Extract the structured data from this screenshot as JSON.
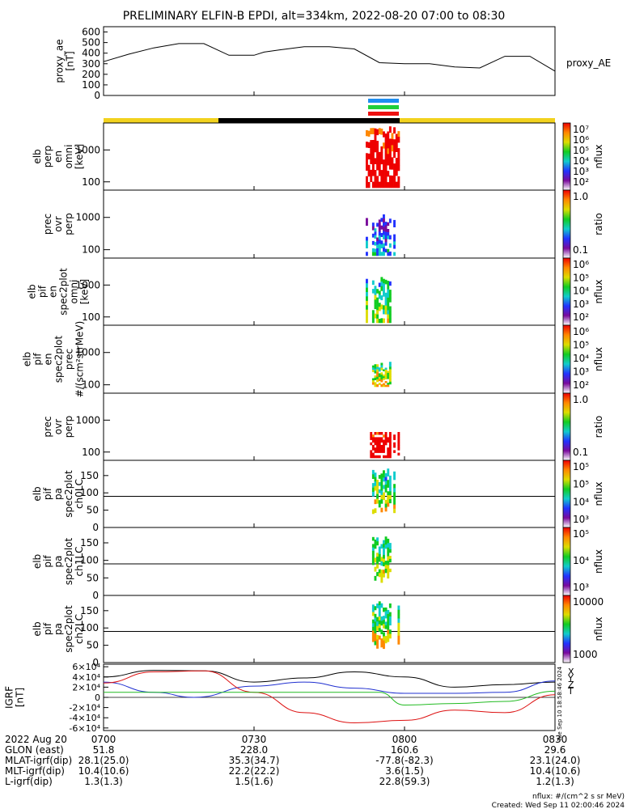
{
  "title": "PRELIMINARY ELFIN-B EPDI, alt=334km, 2022-08-20 07:00 to 08:30",
  "colors": {
    "yellow_bar": "#f2d21e",
    "black_bar": "#000000",
    "blue_strip": "#1f8ef0",
    "green_strip": "#1fcf3a",
    "red_strip": "#ee1111",
    "bx": "#000000",
    "by": "#2030d0",
    "bz": "#dd1111",
    "bt": "#22bb22"
  },
  "colorbar_stops": [
    "#ffffff",
    "#7a0a9c",
    "#2233ff",
    "#11cccc",
    "#11cc22",
    "#dddd00",
    "#ff8800",
    "#ee0000"
  ],
  "chart_data": {
    "type": "heatmap",
    "xlim": [
      "07:00",
      "08:30"
    ],
    "x_ticks": [
      "0700",
      "0730",
      "0800",
      "0830"
    ],
    "panels": [
      {
        "id": "proxy-ae",
        "ylabel": [
          "proxy_ae",
          "[nT]"
        ],
        "right_label": "proxy_AE",
        "ylim": [
          0,
          650
        ],
        "yticks": [
          "0",
          "100",
          "200",
          "300",
          "400",
          "500",
          "600"
        ],
        "line": {
          "x_min": [
            0,
            5,
            10,
            15,
            20,
            25,
            30,
            32,
            35,
            40,
            45,
            50,
            55,
            60,
            65,
            70,
            75,
            80,
            85,
            90
          ],
          "y": [
            320,
            390,
            450,
            490,
            490,
            380,
            380,
            410,
            430,
            460,
            460,
            440,
            310,
            300,
            300,
            270,
            260,
            370,
            370,
            230
          ]
        }
      },
      {
        "id": "perp-omni",
        "ylabel": [
          "elb",
          "perp",
          "en",
          "omni",
          "[keV]"
        ],
        "yticks": [
          "100",
          "1000"
        ],
        "colorbar": {
          "label": "nflux",
          "ticks": [
            "10⁷",
            "10⁶",
            "10⁵",
            "10⁴",
            "10³",
            "10²"
          ]
        }
      },
      {
        "id": "prec-ovr-perp-1",
        "ylabel": [
          "prec",
          "ovr",
          "perp"
        ],
        "yticks": [
          "100",
          "1000"
        ],
        "colorbar": {
          "label": "ratio",
          "ticks": [
            "1.0",
            "0.1"
          ]
        }
      },
      {
        "id": "para-omni",
        "ylabel": [
          "elb",
          "pif",
          "en",
          "spec2plot",
          "omni",
          "[keV]"
        ],
        "yticks": [
          "100",
          "1000"
        ],
        "colorbar": {
          "label": "nflux",
          "ticks": [
            "10⁶",
            "10⁵",
            "10⁴",
            "10³",
            "10²"
          ]
        }
      },
      {
        "id": "para-prec",
        "ylabel": [
          "elb",
          "pif",
          "en",
          "spec2plot",
          "prec",
          "#/(scm²strMeV)"
        ],
        "yticks": [
          "100",
          "1000"
        ],
        "colorbar": {
          "label": "nflux",
          "ticks": [
            "10⁶",
            "10⁵",
            "10⁴",
            "10³",
            "10²"
          ]
        }
      },
      {
        "id": "prec-ovr-perp-2",
        "ylabel": [
          "prec",
          "ovr",
          "perp"
        ],
        "yticks": [
          "100",
          "1000"
        ],
        "colorbar": {
          "label": "ratio",
          "ticks": [
            "1.0",
            "0.1"
          ]
        }
      },
      {
        "id": "pa-ch0",
        "ylabel": [
          "elb",
          "pif",
          "pa",
          "spec2plot",
          "ch0LC"
        ],
        "yticks": [
          "0",
          "50",
          "100",
          "150"
        ],
        "colorbar": {
          "label": "nflux",
          "ticks": [
            "10⁵",
            "10⁵",
            "10⁴",
            "10³"
          ]
        }
      },
      {
        "id": "pa-ch1",
        "ylabel": [
          "elb",
          "pif",
          "pa",
          "spec2plot",
          "ch1LC"
        ],
        "yticks": [
          "0",
          "50",
          "100",
          "150"
        ],
        "colorbar": {
          "label": "nflux",
          "ticks": [
            "10⁵",
            "10⁴",
            "10³"
          ]
        }
      },
      {
        "id": "pa-ch2",
        "ylabel": [
          "elb",
          "pif",
          "pa",
          "spec2plot",
          "ch2LC"
        ],
        "yticks": [
          "0",
          "50",
          "100",
          "150"
        ],
        "colorbar": {
          "label": "nflux",
          "ticks": [
            "10000",
            "1000"
          ]
        }
      },
      {
        "id": "igrf",
        "ylabel": [
          "IGRF",
          "[nT]"
        ],
        "yticks": [
          "-6×10⁴",
          "-4×10⁴",
          "-2×10⁴",
          "0",
          "2×10⁴",
          "4×10⁴",
          "6×10⁴"
        ],
        "ylim": [
          -65000,
          65000
        ],
        "legend": [
          "X",
          "Y",
          "Z",
          "T"
        ],
        "series": [
          {
            "x_min": [
              0,
              10,
              20,
              30,
              40,
              50,
              60,
              70,
              80,
              90
            ],
            "y": [
              40000,
              53000,
              52000,
              30000,
              38000,
              50000,
              40000,
              20000,
              25000,
              30000
            ]
          },
          {
            "x_min": [
              0,
              10,
              18,
              30,
              40,
              50,
              60,
              70,
              80,
              90
            ],
            "y": [
              30000,
              10000,
              0,
              22000,
              30000,
              18000,
              8000,
              8000,
              10000,
              32000
            ]
          },
          {
            "x_min": [
              0,
              10,
              20,
              30,
              40,
              50,
              60,
              70,
              80,
              90
            ],
            "y": [
              28000,
              50000,
              52000,
              10000,
              -30000,
              -50000,
              -45000,
              -25000,
              -30000,
              5000
            ]
          },
          {
            "x_min": [
              0,
              30,
              55,
              60,
              70,
              80,
              90
            ],
            "y": [
              10000,
              10000,
              10000,
              -15000,
              -12000,
              -8000,
              12000
            ]
          }
        ]
      }
    ],
    "ephemeris": {
      "rows": [
        {
          "label": "2022 Aug 20",
          "values": [
            "0700",
            "0730",
            "0800",
            "0830"
          ]
        },
        {
          "label": "GLON (east)",
          "values": [
            "51.8",
            "228.0",
            "160.6",
            "29.6"
          ]
        },
        {
          "label": "MLAT-igrf(dip)",
          "values": [
            "28.1(25.0)",
            "35.3(34.7)",
            "-77.8(-82.3)",
            "23.1(24.0)"
          ]
        },
        {
          "label": "MLT-igrf(dip)",
          "values": [
            "10.4(10.6)",
            "22.2(22.2)",
            "3.6(1.5)",
            "10.4(10.6)"
          ]
        },
        {
          "label": "L-igrf(dip)",
          "values": [
            "1.3(1.3)",
            "1.5(1.6)",
            "22.8(59.3)",
            "1.2(1.3)"
          ]
        }
      ]
    },
    "footer": [
      "nflux: #/(cm^2 s sr MeV)",
      "Created: Wed Sep 11 02:00:46 2024"
    ],
    "side_stamp": "Tue Sep 10 18:58:46 2024"
  }
}
